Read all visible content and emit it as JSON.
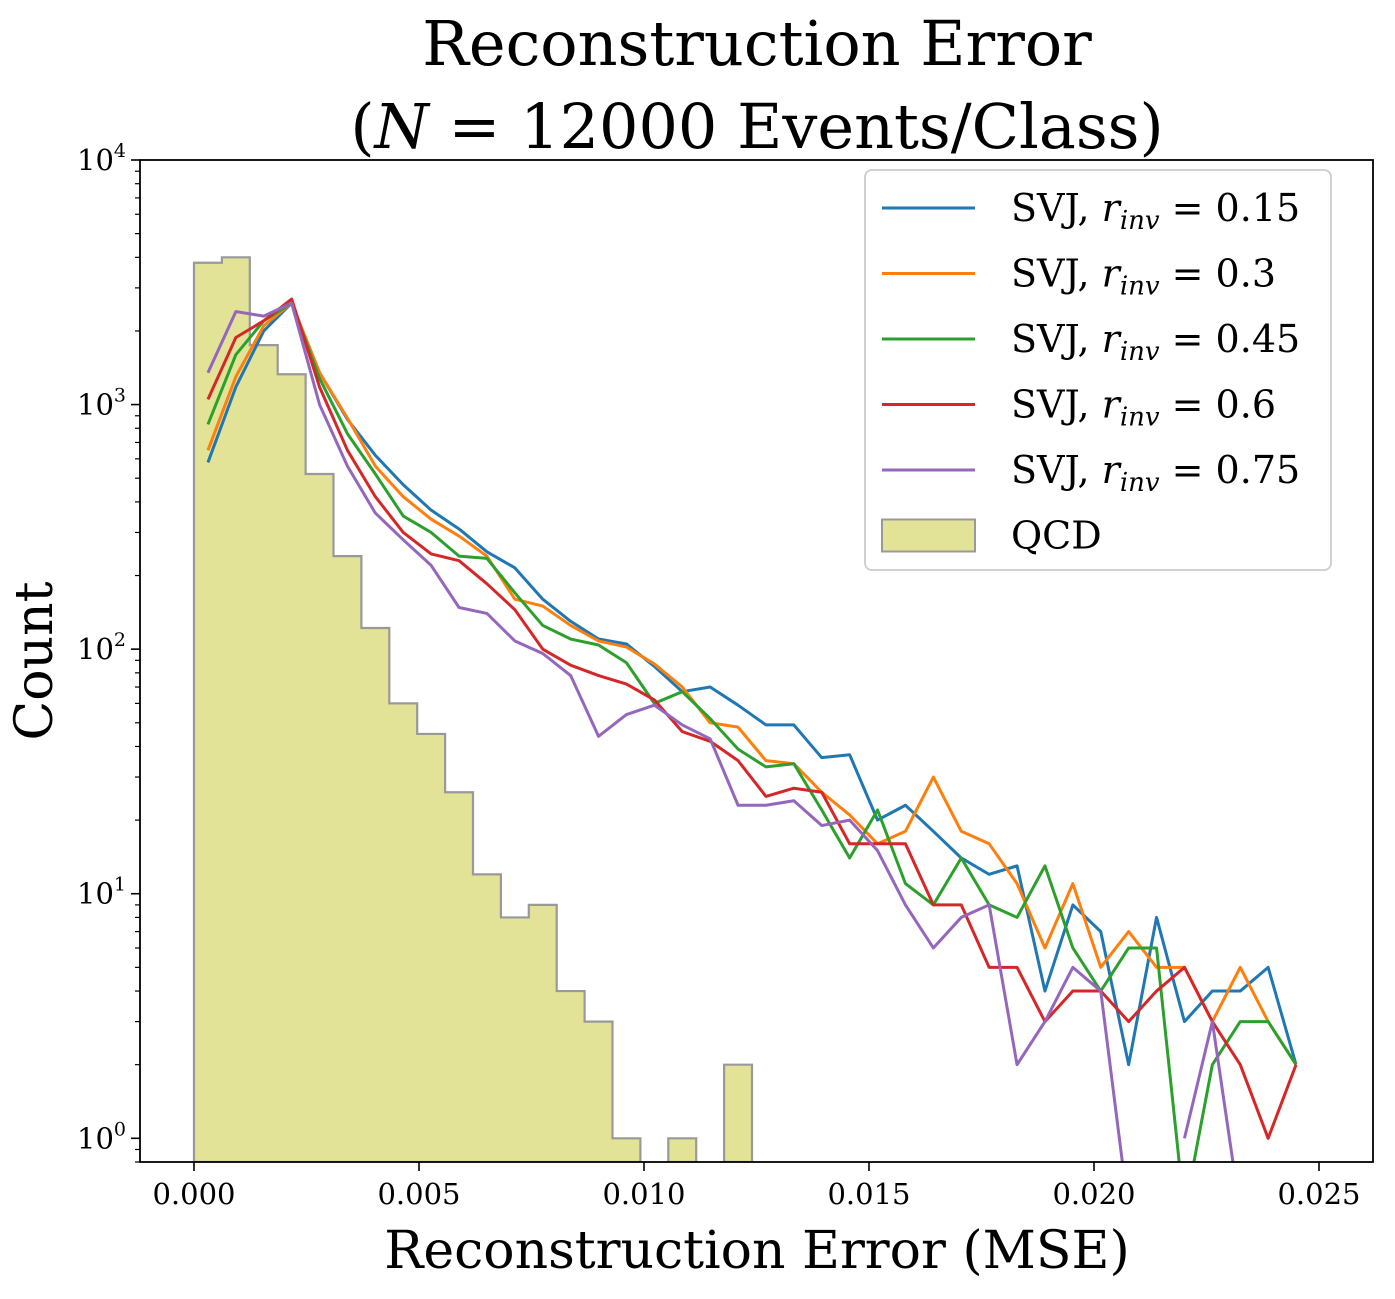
{
  "chart_data": {
    "type": "line",
    "title_line1": "Reconstruction Error",
    "title_line2_prefix": "(",
    "title_line2_var": "N",
    "title_line2_suffix": " = 12000 Events/Class)",
    "xlabel": "Reconstruction Error (MSE)",
    "ylabel": "Count",
    "xlim": [
      -0.0012,
      0.0262
    ],
    "ylim": [
      0.8,
      10000
    ],
    "yscale": "log",
    "grid": false,
    "legend_position": "top-right",
    "x_ticks": [
      {
        "value": 0.0,
        "label": "0.000"
      },
      {
        "value": 0.005,
        "label": "0.005"
      },
      {
        "value": 0.01,
        "label": "0.010"
      },
      {
        "value": 0.015,
        "label": "0.015"
      },
      {
        "value": 0.02,
        "label": "0.020"
      },
      {
        "value": 0.025,
        "label": "0.025"
      }
    ],
    "y_ticks": [
      {
        "value": 1,
        "base": "10",
        "exp": "0"
      },
      {
        "value": 10,
        "base": "10",
        "exp": "1"
      },
      {
        "value": 100,
        "base": "10",
        "exp": "2"
      },
      {
        "value": 1000,
        "base": "10",
        "exp": "3"
      },
      {
        "value": 10000,
        "base": "10",
        "exp": "4"
      }
    ],
    "x": [
      0.00031,
      0.00093,
      0.00155,
      0.00217,
      0.00279,
      0.00341,
      0.00403,
      0.00465,
      0.00527,
      0.00589,
      0.00651,
      0.00713,
      0.00775,
      0.00837,
      0.00899,
      0.00961,
      0.01023,
      0.01085,
      0.01147,
      0.01209,
      0.01271,
      0.01333,
      0.01395,
      0.01457,
      0.01519,
      0.01581,
      0.01643,
      0.01705,
      0.01767,
      0.01829,
      0.01891,
      0.01953,
      0.02015,
      0.02077,
      0.02139,
      0.02201,
      0.02263,
      0.02325,
      0.02387,
      0.02449
    ],
    "series": [
      {
        "name": "SVJ, r",
        "sub": "inv",
        "value_text": " = 0.15",
        "color": "#1f77b4",
        "values": [
          580,
          1180,
          2000,
          2600,
          1350,
          870,
          620,
          470,
          370,
          310,
          250,
          215,
          160,
          130,
          110,
          105,
          85,
          67,
          70,
          59,
          49,
          49,
          36,
          37,
          20,
          23,
          18,
          14,
          12,
          13,
          4,
          9,
          7,
          2,
          8,
          3,
          4,
          4,
          5,
          2
        ]
      },
      {
        "name": "SVJ, r",
        "sub": "inv",
        "value_text": " = 0.3",
        "color": "#ff7f0e",
        "values": [
          650,
          1300,
          2100,
          2600,
          1350,
          880,
          560,
          420,
          340,
          290,
          240,
          160,
          150,
          125,
          108,
          102,
          87,
          70,
          50,
          48,
          35,
          34,
          26,
          21,
          16,
          18,
          30,
          18,
          16,
          11,
          6,
          11,
          5,
          7,
          5,
          5,
          3,
          5,
          3,
          2
        ]
      },
      {
        "name": "SVJ, r",
        "sub": "inv",
        "value_text": " = 0.45",
        "color": "#2ca02c",
        "values": [
          830,
          1600,
          2200,
          2600,
          1280,
          760,
          520,
          350,
          300,
          240,
          235,
          170,
          125,
          110,
          104,
          88,
          60,
          67,
          52,
          39,
          33,
          34,
          22,
          14,
          22,
          11,
          9,
          14,
          9,
          8,
          13,
          6,
          4,
          6,
          6,
          0.5,
          2,
          3,
          3,
          2
        ]
      },
      {
        "name": "SVJ, r",
        "sub": "inv",
        "value_text": " = 0.6",
        "color": "#d62728",
        "values": [
          1050,
          1880,
          2200,
          2700,
          1180,
          650,
          420,
          300,
          245,
          230,
          185,
          145,
          100,
          86,
          78,
          72,
          62,
          46,
          42,
          35,
          25,
          27,
          26,
          16,
          16,
          16,
          9,
          9,
          5,
          5,
          3,
          4,
          4,
          3,
          4,
          5,
          3,
          2,
          1,
          2
        ]
      },
      {
        "name": "SVJ, r",
        "sub": "inv",
        "value_text": " = 0.75",
        "color": "#9467bd",
        "values": [
          1350,
          2400,
          2300,
          2600,
          1000,
          560,
          360,
          280,
          220,
          148,
          140,
          108,
          96,
          78,
          44,
          54,
          59,
          49,
          43,
          23,
          23,
          24,
          19,
          20,
          15,
          9,
          6,
          8,
          9,
          2,
          3,
          5,
          4,
          0.5,
          null,
          1,
          3,
          0.5,
          null,
          null
        ]
      }
    ],
    "histogram": {
      "name": "QCD",
      "color": "#e2e397",
      "edge_color": "#999999",
      "bin_edges": [
        0.0,
        0.00062,
        0.00124,
        0.00186,
        0.00248,
        0.0031,
        0.00372,
        0.00434,
        0.00496,
        0.00558,
        0.0062,
        0.00682,
        0.00744,
        0.00806,
        0.00868,
        0.0093,
        0.00992,
        0.01054,
        0.01116,
        0.01178,
        0.0124
      ],
      "counts": [
        3800,
        4000,
        1750,
        1330,
        520,
        240,
        122,
        60,
        45,
        26,
        12,
        8,
        9,
        4,
        3,
        1,
        0,
        1,
        0,
        2
      ]
    }
  }
}
